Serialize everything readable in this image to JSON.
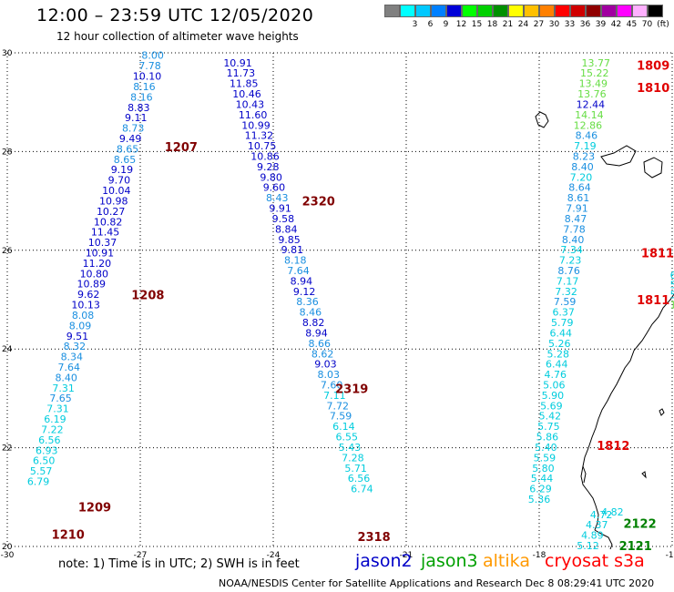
{
  "header": {
    "title": "12:00 – 23:59 UTC 12/05/2020",
    "subtitle": "12 hour collection of altimeter wave heights"
  },
  "legend": {
    "unit": "(ft)",
    "items": [
      {
        "color": "#808080",
        "label": ""
      },
      {
        "color": "#00ffff",
        "label": "3"
      },
      {
        "color": "#00c8ff",
        "label": "6"
      },
      {
        "color": "#0080ff",
        "label": "9"
      },
      {
        "color": "#0000d8",
        "label": "12"
      },
      {
        "color": "#00ff00",
        "label": "15"
      },
      {
        "color": "#00d000",
        "label": "18"
      },
      {
        "color": "#009000",
        "label": "21"
      },
      {
        "color": "#ffff00",
        "label": "24"
      },
      {
        "color": "#ffc000",
        "label": "27"
      },
      {
        "color": "#ff8000",
        "label": "30"
      },
      {
        "color": "#ff0000",
        "label": "33"
      },
      {
        "color": "#d00000",
        "label": "36"
      },
      {
        "color": "#900000",
        "label": "39"
      },
      {
        "color": "#a000a0",
        "label": "42"
      },
      {
        "color": "#ff00ff",
        "label": "45"
      },
      {
        "color": "#ffb0ff",
        "label": "70"
      },
      {
        "color": "#000000",
        "label": ""
      }
    ]
  },
  "axes": {
    "lon_ticks": [
      {
        "value": -30,
        "label": "-30"
      },
      {
        "value": -27,
        "label": "-27"
      },
      {
        "value": -24,
        "label": "-24"
      },
      {
        "value": -21,
        "label": "-21"
      },
      {
        "value": -18,
        "label": "-18"
      },
      {
        "value": -15,
        "label": "-15"
      }
    ],
    "lat_ticks": [
      {
        "value": 20,
        "label": "20"
      },
      {
        "value": 22,
        "label": "22"
      },
      {
        "value": 24,
        "label": "24"
      },
      {
        "value": 26,
        "label": "26"
      },
      {
        "value": 28,
        "label": "28"
      },
      {
        "value": 30,
        "label": "30"
      }
    ],
    "lon_range": [
      -30,
      -15
    ],
    "lat_range": [
      20,
      30
    ]
  },
  "colors": {
    "jason2": "#0000c8",
    "jason3": "#00a000",
    "altika": "#ff9900",
    "cryosat": "#ff0000",
    "light_cyan": "#00ccdd",
    "mid_blue": "#1a8fe0",
    "light_green": "#66dd44",
    "time_red": "#e00000",
    "time_dark": "#800000",
    "time_green": "#008000"
  },
  "tracks": [
    {
      "name": "track-1210",
      "lat_start": 29.95,
      "lat_step": -0.2105,
      "lon_start": -26.72,
      "lon_end": -29.3,
      "values": [
        "8.00",
        "7.78",
        "10.10",
        "8.16",
        "8.16",
        "8.83",
        "9.11",
        "8.73",
        "9.49",
        "8.65",
        "8.65",
        "9.19",
        "9.70",
        "10.04",
        "10.98",
        "10.27",
        "10.82",
        "11.45",
        "10.37",
        "10.91",
        "11.20",
        "10.80",
        "10.89",
        "9.62",
        "10.13",
        "8.08",
        "8.09",
        "9.51",
        "8.32",
        "8.34",
        "7.64",
        "8.40",
        "7.31",
        "7.65",
        "7.31",
        "6.19",
        "7.22",
        "6.56",
        "6.93",
        "6.50",
        "5.57",
        "6.79"
      ]
    },
    {
      "name": "track-2318",
      "lat_start": 29.8,
      "lat_step": -0.2105,
      "lon_start": -24.8,
      "lon_end": -22.0,
      "values": [
        "10.91",
        "11.73",
        "11.85",
        "10.46",
        "10.43",
        "11.60",
        "10.99",
        "11.32",
        "10.75",
        "10.86",
        "9.28",
        "9.80",
        "9.60",
        "8.43",
        "9.91",
        "9.58",
        "8.84",
        "9.85",
        "9.81",
        "8.18",
        "7.64",
        "8.94",
        "9.12",
        "8.36",
        "8.46",
        "8.82",
        "8.94",
        "8.66",
        "8.62",
        "9.03",
        "8.03",
        "7.60",
        "7.11",
        "7.72",
        "7.59",
        "6.14",
        "6.55",
        "5.43",
        "7.28",
        "5.71",
        "6.56",
        "6.74"
      ]
    },
    {
      "name": "track-1812",
      "lat_start": 29.8,
      "lat_step": -0.2105,
      "lon_start": -16.72,
      "lon_end": -18.0,
      "values": [
        "13.77",
        "15.22",
        "13.49",
        "13.76",
        "12.44",
        "14.14",
        "12.86",
        "8.46",
        "7.19",
        "8.23",
        "8.40",
        "7.20",
        "8.64",
        "8.61",
        "7.91",
        "8.47",
        "7.78",
        "8.40",
        "7.34",
        "7.23",
        "8.76",
        "7.17",
        "7.32",
        "7.59",
        "6.37",
        "5.79",
        "6.44",
        "5.26",
        "5.28",
        "6.44",
        "4.76",
        "5.06",
        "5.90",
        "5.69",
        "5.42",
        "5.75",
        "5.86",
        "5.40",
        "5.59",
        "5.80",
        "5.44",
        "6.29",
        "5.36"
      ]
    },
    {
      "name": "track-2122",
      "lat_start": 20.65,
      "lat_step": -0.2105,
      "lon_start": -16.6,
      "lon_end": -16.9,
      "values": [
        "4.72",
        "4.37",
        "4.89",
        "5.12"
      ]
    }
  ],
  "time_labels": [
    {
      "text": "1809",
      "lat": 29.75,
      "lon": -15.8,
      "color": "time_red"
    },
    {
      "text": "1810",
      "lat": 29.3,
      "lon": -15.8,
      "color": "time_red"
    },
    {
      "text": "1207",
      "lat": 28.1,
      "lon": -26.45,
      "color": "time_dark"
    },
    {
      "text": "2320",
      "lat": 27.0,
      "lon": -23.35,
      "color": "time_dark"
    },
    {
      "text": "1811",
      "lat": 25.95,
      "lon": -15.7,
      "color": "time_red"
    },
    {
      "text": "1208",
      "lat": 25.1,
      "lon": -27.2,
      "color": "time_dark"
    },
    {
      "text": "1811",
      "lat": 25.0,
      "lon": -15.8,
      "color": "time_red"
    },
    {
      "text": "2319",
      "lat": 23.2,
      "lon": -22.6,
      "color": "time_dark"
    },
    {
      "text": "1812",
      "lat": 22.05,
      "lon": -16.7,
      "color": "time_red"
    },
    {
      "text": "1209",
      "lat": 20.8,
      "lon": -28.4,
      "color": "time_dark"
    },
    {
      "text": "2122",
      "lat": 20.47,
      "lon": -16.1,
      "color": "time_green"
    },
    {
      "text": "1210",
      "lat": 20.25,
      "lon": -29.0,
      "color": "time_dark"
    },
    {
      "text": "2318",
      "lat": 20.2,
      "lon": -22.1,
      "color": "time_dark"
    },
    {
      "text": "2121",
      "lat": 20.02,
      "lon": -16.2,
      "color": "time_green"
    }
  ],
  "edge_values": [
    {
      "text": "6",
      "lat": 25.5,
      "lon": -15.05,
      "color": "light_cyan"
    },
    {
      "text": "5.",
      "lat": 25.3,
      "lon": -15.05,
      "color": "light_cyan"
    },
    {
      "text": "5.",
      "lat": 25.1,
      "lon": -15.05,
      "color": "light_cyan"
    },
    {
      "text": "13.",
      "lat": 24.9,
      "lon": -15.05,
      "color": "light_green"
    },
    {
      "text": "4.82",
      "lat": 20.7,
      "lon": -16.6,
      "color": "light_cyan"
    }
  ],
  "footer": {
    "note": "note:  1) Time is in UTC;  2) SWH is in feet",
    "satellites": [
      {
        "label": "jason2",
        "color": "jason2"
      },
      {
        "label": "jason3",
        "color": "jason3"
      },
      {
        "label": "altika",
        "color": "altika"
      },
      {
        "label": "cryosat s3a",
        "color": "cryosat"
      }
    ],
    "credit": "NOAA/NESDIS Center for Satellite Applications and Research    Dec  8 08:29:41 UTC 2020"
  }
}
